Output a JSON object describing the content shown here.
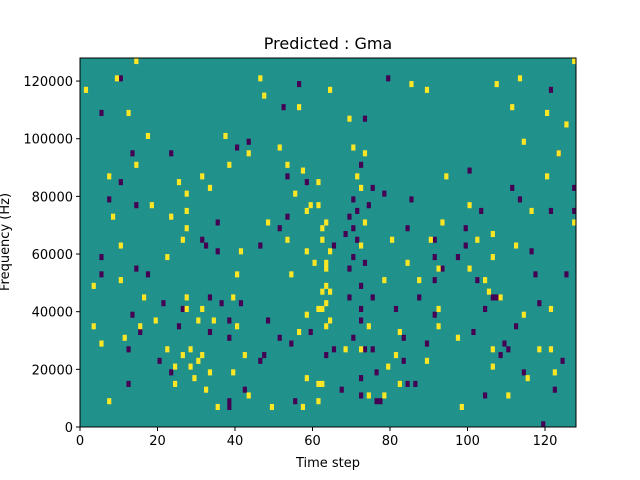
{
  "chart_data": {
    "type": "heatmap",
    "title": "Predicted : Gma",
    "xlabel": "Time step",
    "ylabel": "Frequency (Hz)",
    "xlim": [
      0,
      128
    ],
    "ylim": [
      0,
      128000
    ],
    "x_ticks": [
      {
        "value": 0,
        "label": "0"
      },
      {
        "value": 20,
        "label": "20"
      },
      {
        "value": 40,
        "label": "40"
      },
      {
        "value": 60,
        "label": "60"
      },
      {
        "value": 80,
        "label": "80"
      },
      {
        "value": 100,
        "label": "100"
      },
      {
        "value": 120,
        "label": "120"
      }
    ],
    "y_ticks": [
      {
        "value": 0,
        "label": "0"
      },
      {
        "value": 20000,
        "label": "20000"
      },
      {
        "value": 40000,
        "label": "40000"
      },
      {
        "value": 60000,
        "label": "60000"
      },
      {
        "value": 80000,
        "label": "80000"
      },
      {
        "value": 100000,
        "label": "100000"
      },
      {
        "value": 120000,
        "label": "120000"
      }
    ],
    "colormap": "viridis",
    "grid": false,
    "background_color": "#21918c",
    "value_colors": {
      "-1": "#440154",
      "0": "#21918c",
      "1": "#fde725"
    },
    "cell_height": 2000,
    "cells_high": [
      [
        1,
        116000
      ],
      [
        3,
        48000
      ],
      [
        3,
        34000
      ],
      [
        5,
        28000
      ],
      [
        7,
        86000
      ],
      [
        7,
        8000
      ],
      [
        8,
        72000
      ],
      [
        9,
        120000
      ],
      [
        10,
        62000
      ],
      [
        10,
        50000
      ],
      [
        11,
        30000
      ],
      [
        12,
        108000
      ],
      [
        14,
        126000
      ],
      [
        14,
        90000
      ],
      [
        15,
        34000
      ],
      [
        16,
        44000
      ],
      [
        17,
        100000
      ],
      [
        18,
        76000
      ],
      [
        19,
        36000
      ],
      [
        22,
        58000
      ],
      [
        22,
        26000
      ],
      [
        23,
        72000
      ],
      [
        24,
        20000
      ],
      [
        24,
        14000
      ],
      [
        25,
        84000
      ],
      [
        26,
        24000
      ],
      [
        26,
        64000
      ],
      [
        27,
        80000
      ],
      [
        27,
        68000
      ],
      [
        27,
        74000
      ],
      [
        27,
        40000
      ],
      [
        27,
        44000
      ],
      [
        28,
        26000
      ],
      [
        28,
        20000
      ],
      [
        29,
        16000
      ],
      [
        30,
        36000
      ],
      [
        30,
        22000
      ],
      [
        31,
        40000
      ],
      [
        31,
        86000
      ],
      [
        31,
        24000
      ],
      [
        32,
        12000
      ],
      [
        33,
        18000
      ],
      [
        33,
        82000
      ],
      [
        34,
        36000
      ],
      [
        35,
        6000
      ],
      [
        37,
        100000
      ],
      [
        38,
        90000
      ],
      [
        39,
        44000
      ],
      [
        39,
        18000
      ],
      [
        40,
        52000
      ],
      [
        40,
        34000
      ],
      [
        41,
        60000
      ],
      [
        42,
        24000
      ],
      [
        43,
        10000
      ],
      [
        43,
        94000
      ],
      [
        46,
        120000
      ],
      [
        47,
        114000
      ],
      [
        48,
        70000
      ],
      [
        49,
        6000
      ],
      [
        51,
        96000
      ],
      [
        53,
        90000
      ],
      [
        53,
        64000
      ],
      [
        54,
        52000
      ],
      [
        55,
        80000
      ],
      [
        56,
        110000
      ],
      [
        56,
        32000
      ],
      [
        57,
        6000
      ],
      [
        57,
        88000
      ],
      [
        58,
        60000
      ],
      [
        58,
        38000
      ],
      [
        58,
        16000
      ],
      [
        58,
        74000
      ],
      [
        59,
        76000
      ],
      [
        60,
        56000
      ],
      [
        61,
        84000
      ],
      [
        61,
        76000
      ],
      [
        61,
        40000
      ],
      [
        61,
        14000
      ],
      [
        61,
        8000
      ],
      [
        62,
        14000
      ],
      [
        62,
        64000
      ],
      [
        62,
        68000
      ],
      [
        62,
        46000
      ],
      [
        62,
        40000
      ],
      [
        63,
        56000
      ],
      [
        63,
        34000
      ],
      [
        63,
        42000
      ],
      [
        63,
        48000
      ],
      [
        63,
        70000
      ],
      [
        63,
        54000
      ],
      [
        64,
        60000
      ],
      [
        64,
        46000
      ],
      [
        64,
        36000
      ],
      [
        64,
        116000
      ],
      [
        68,
        26000
      ],
      [
        69,
        106000
      ],
      [
        70,
        96000
      ],
      [
        71,
        86000
      ],
      [
        72,
        82000
      ],
      [
        72,
        26000
      ],
      [
        72,
        62000
      ],
      [
        73,
        94000
      ],
      [
        73,
        70000
      ],
      [
        74,
        34000
      ],
      [
        74,
        10000
      ],
      [
        78,
        10000
      ],
      [
        78,
        50000
      ],
      [
        79,
        20000
      ],
      [
        80,
        64000
      ],
      [
        81,
        24000
      ],
      [
        82,
        14000
      ],
      [
        82,
        32000
      ],
      [
        84,
        56000
      ],
      [
        85,
        118000
      ],
      [
        87,
        50000
      ],
      [
        89,
        116000
      ],
      [
        89,
        22000
      ],
      [
        90,
        64000
      ],
      [
        92,
        34000
      ],
      [
        92,
        40000
      ],
      [
        92,
        54000
      ],
      [
        93,
        70000
      ],
      [
        94,
        86000
      ],
      [
        97,
        30000
      ],
      [
        98,
        6000
      ],
      [
        100,
        76000
      ],
      [
        100,
        54000
      ],
      [
        102,
        64000
      ],
      [
        104,
        50000
      ],
      [
        105,
        46000
      ],
      [
        106,
        20000
      ],
      [
        106,
        66000
      ],
      [
        106,
        58000
      ],
      [
        106,
        26000
      ],
      [
        107,
        118000
      ],
      [
        108,
        44000
      ],
      [
        110,
        10000
      ],
      [
        111,
        110000
      ],
      [
        112,
        62000
      ],
      [
        113,
        120000
      ],
      [
        114,
        98000
      ],
      [
        114,
        38000
      ],
      [
        115,
        16000
      ],
      [
        116,
        74000
      ],
      [
        118,
        26000
      ],
      [
        120,
        86000
      ],
      [
        120,
        108000
      ],
      [
        121,
        40000
      ],
      [
        121,
        26000
      ],
      [
        122,
        18000
      ],
      [
        123,
        94000
      ],
      [
        125,
        104000
      ],
      [
        127,
        70000
      ],
      [
        127,
        126000
      ]
    ],
    "cells_low": [
      [
        5,
        108000
      ],
      [
        5,
        58000
      ],
      [
        5,
        52000
      ],
      [
        7,
        78000
      ],
      [
        10,
        120000
      ],
      [
        10,
        84000
      ],
      [
        12,
        14000
      ],
      [
        12,
        26000
      ],
      [
        13,
        94000
      ],
      [
        13,
        38000
      ],
      [
        14,
        54000
      ],
      [
        14,
        76000
      ],
      [
        15,
        32000
      ],
      [
        17,
        52000
      ],
      [
        20,
        22000
      ],
      [
        21,
        42000
      ],
      [
        23,
        94000
      ],
      [
        23,
        18000
      ],
      [
        25,
        34000
      ],
      [
        26,
        40000
      ],
      [
        31,
        64000
      ],
      [
        32,
        62000
      ],
      [
        33,
        32000
      ],
      [
        33,
        44000
      ],
      [
        35,
        70000
      ],
      [
        35,
        60000
      ],
      [
        36,
        42000
      ],
      [
        38,
        30000
      ],
      [
        38,
        36000
      ],
      [
        38,
        6000
      ],
      [
        38,
        8000
      ],
      [
        40,
        96000
      ],
      [
        41,
        42000
      ],
      [
        42,
        12000
      ],
      [
        43,
        98000
      ],
      [
        46,
        22000
      ],
      [
        46,
        62000
      ],
      [
        48,
        36000
      ],
      [
        47,
        24000
      ],
      [
        51,
        68000
      ],
      [
        51,
        30000
      ],
      [
        52,
        110000
      ],
      [
        53,
        86000
      ],
      [
        53,
        72000
      ],
      [
        54,
        28000
      ],
      [
        55,
        8000
      ],
      [
        56,
        118000
      ],
      [
        58,
        84000
      ],
      [
        59,
        32000
      ],
      [
        63,
        24000
      ],
      [
        65,
        62000
      ],
      [
        65,
        26000
      ],
      [
        67,
        12000
      ],
      [
        68,
        66000
      ],
      [
        69,
        72000
      ],
      [
        69,
        44000
      ],
      [
        69,
        54000
      ],
      [
        70,
        68000
      ],
      [
        70,
        58000
      ],
      [
        70,
        78000
      ],
      [
        70,
        30000
      ],
      [
        71,
        64000
      ],
      [
        71,
        74000
      ],
      [
        72,
        90000
      ],
      [
        72,
        48000
      ],
      [
        72,
        40000
      ],
      [
        72,
        36000
      ],
      [
        72,
        10000
      ],
      [
        72,
        16000
      ],
      [
        73,
        26000
      ],
      [
        73,
        106000
      ],
      [
        73,
        56000
      ],
      [
        74,
        76000
      ],
      [
        75,
        82000
      ],
      [
        75,
        44000
      ],
      [
        75,
        26000
      ],
      [
        76,
        8000
      ],
      [
        76,
        18000
      ],
      [
        77,
        8000
      ],
      [
        78,
        80000
      ],
      [
        79,
        120000
      ],
      [
        81,
        40000
      ],
      [
        83,
        22000
      ],
      [
        83,
        30000
      ],
      [
        84,
        68000
      ],
      [
        84,
        14000
      ],
      [
        85,
        78000
      ],
      [
        86,
        14000
      ],
      [
        87,
        44000
      ],
      [
        89,
        28000
      ],
      [
        91,
        38000
      ],
      [
        91,
        64000
      ],
      [
        91,
        50000
      ],
      [
        91,
        58000
      ],
      [
        93,
        54000
      ],
      [
        97,
        58000
      ],
      [
        99,
        68000
      ],
      [
        99,
        62000
      ],
      [
        100,
        88000
      ],
      [
        101,
        32000
      ],
      [
        102,
        50000
      ],
      [
        103,
        74000
      ],
      [
        104,
        10000
      ],
      [
        104,
        40000
      ],
      [
        106,
        44000
      ],
      [
        107,
        44000
      ],
      [
        108,
        24000
      ],
      [
        109,
        28000
      ],
      [
        110,
        26000
      ],
      [
        111,
        82000
      ],
      [
        112,
        34000
      ],
      [
        113,
        78000
      ],
      [
        114,
        18000
      ],
      [
        116,
        60000
      ],
      [
        117,
        52000
      ],
      [
        119,
        0
      ],
      [
        118,
        42000
      ],
      [
        121,
        116000
      ],
      [
        121,
        74000
      ],
      [
        122,
        12000
      ],
      [
        123,
        94000
      ],
      [
        124,
        22000
      ],
      [
        125,
        52000
      ],
      [
        127,
        82000
      ],
      [
        127,
        74000
      ]
    ]
  }
}
